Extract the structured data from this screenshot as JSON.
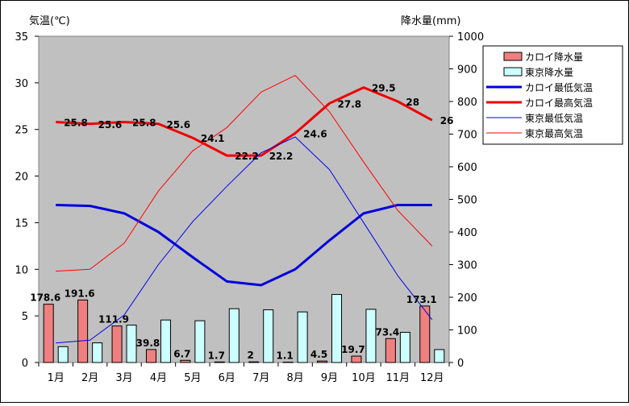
{
  "chart_data": {
    "type": "bar",
    "left_axis_title": "気温(℃)",
    "right_axis_title": "降水量(mm)",
    "categories": [
      "1月",
      "2月",
      "3月",
      "4月",
      "5月",
      "6月",
      "7月",
      "8月",
      "9月",
      "10月",
      "11月",
      "12月"
    ],
    "left_ylim": [
      0,
      35
    ],
    "left_ticks": [
      0,
      5,
      10,
      15,
      20,
      25,
      30,
      35
    ],
    "right_ylim": [
      0,
      1000
    ],
    "right_ticks": [
      0,
      100,
      200,
      300,
      400,
      500,
      600,
      700,
      800,
      900,
      1000
    ],
    "grid": false,
    "legend_position": "right",
    "series": [
      {
        "name": "カロイ降水量",
        "kind": "bar",
        "axis": "right",
        "color": "#f08080",
        "values": [
          178.6,
          191.6,
          111.9,
          39.8,
          6.7,
          1.7,
          2,
          1.1,
          4.5,
          19.7,
          73.4,
          173.1
        ],
        "data_labels": [
          "178.6",
          "191.6",
          "111.9",
          "39.8",
          "6.7",
          "1.7",
          "2",
          "1.1",
          "4.5",
          "19.7",
          "73.4",
          "173.1"
        ]
      },
      {
        "name": "東京降水量",
        "kind": "bar",
        "axis": "right",
        "color": "#ccffff",
        "values": [
          48.6,
          60.2,
          114.5,
          130.3,
          128,
          164.9,
          161.5,
          155.1,
          208.5,
          163.1,
          92.5,
          39.6
        ]
      },
      {
        "name": "カロイ最低気温",
        "kind": "line",
        "axis": "left",
        "color": "#0000dd",
        "width": 3,
        "values": [
          16.9,
          16.8,
          16.0,
          14.0,
          11.3,
          8.7,
          8.3,
          10.0,
          13.1,
          16.0,
          16.9,
          16.9
        ]
      },
      {
        "name": "カロイ最高気温",
        "kind": "line",
        "axis": "left",
        "color": "#ee0000",
        "width": 3,
        "values": [
          25.8,
          25.6,
          25.8,
          25.6,
          24.1,
          22.2,
          22.2,
          24.6,
          27.8,
          29.5,
          28,
          26
        ],
        "data_labels": [
          "25.8",
          "25.6",
          "25.8",
          "25.6",
          "24.1",
          "22.2",
          "22.2",
          "24.6",
          "27.8",
          "29.5",
          "28",
          "26"
        ]
      },
      {
        "name": "東京最低気温",
        "kind": "line",
        "axis": "left",
        "color": "#0000ee",
        "width": 1,
        "values": [
          2.1,
          2.4,
          5.1,
          10.5,
          15.1,
          18.9,
          22.5,
          24.2,
          20.7,
          15.0,
          9.3,
          4.6
        ]
      },
      {
        "name": "東京最高気温",
        "kind": "line",
        "axis": "left",
        "color": "#ff0000",
        "width": 1,
        "values": [
          9.8,
          10.0,
          12.8,
          18.4,
          22.7,
          25.2,
          29.0,
          30.8,
          26.9,
          21.5,
          16.3,
          12.5
        ]
      }
    ]
  }
}
